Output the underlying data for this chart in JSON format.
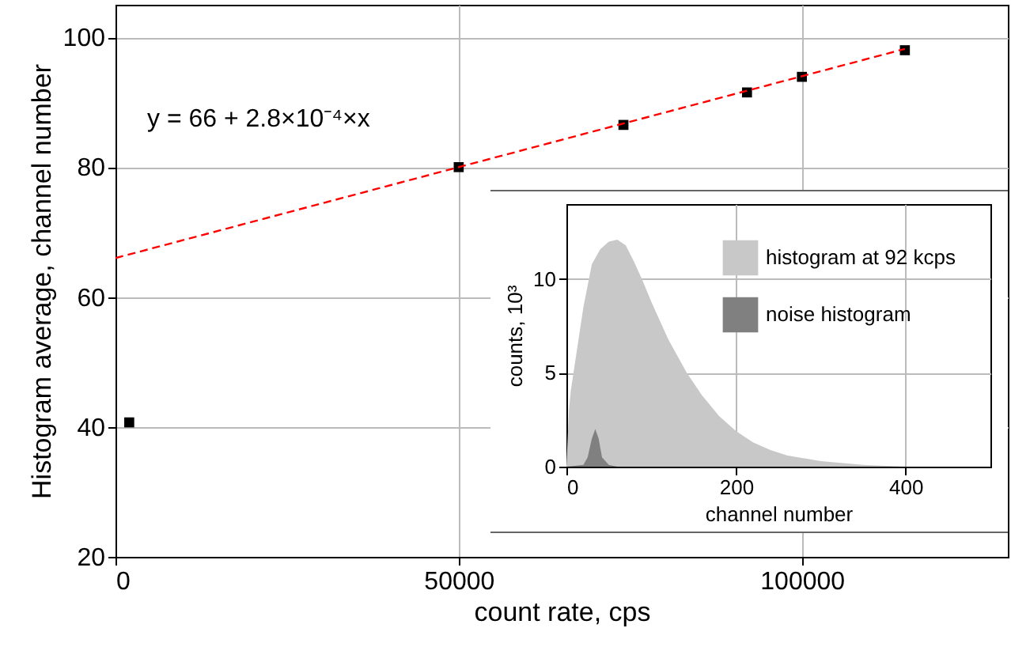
{
  "chart_data": [
    {
      "type": "scatter",
      "xlabel": "count rate, cps",
      "ylabel": "Histogram average, channel number",
      "xlim": [
        0,
        130000
      ],
      "xticks": [
        0,
        50000,
        100000
      ],
      "ylim": [
        20,
        105
      ],
      "yticks": [
        20,
        40,
        60,
        80,
        100
      ],
      "grid": true,
      "annotations": [
        "y = 66 + 2.8×10⁻⁴×x"
      ],
      "series": [
        {
          "color": "#000000",
          "marker": "square",
          "x": [
            2000,
            50000,
            74000,
            92000,
            100000,
            115000
          ],
          "values": [
            40.7,
            80,
            86.5,
            91.5,
            93.9,
            98.0
          ]
        },
        {
          "type": "line",
          "color": "#ff0000",
          "line_style": "dashed",
          "x": [
            0,
            115000
          ],
          "values": [
            66,
            98.2
          ]
        }
      ]
    },
    {
      "type": "area",
      "xlabel": "channel number",
      "ylabel": "counts, 10³",
      "xlim": [
        0,
        500
      ],
      "xticks": [
        0,
        200,
        400
      ],
      "ylim": [
        0,
        14
      ],
      "yticks": [
        0,
        5,
        10
      ],
      "grid": true,
      "legend": "top right",
      "series": [
        {
          "name": "histogram at 92 kcps",
          "color": "#c8c8c8",
          "x": [
            0,
            3,
            5,
            10,
            20,
            30,
            40,
            50,
            60,
            70,
            80,
            90,
            100,
            120,
            142,
            160,
            180,
            200,
            220,
            240,
            260,
            300,
            350,
            400,
            500
          ],
          "values": [
            0,
            3,
            4,
            5.5,
            8.5,
            10.8,
            11.6,
            12.0,
            12.1,
            11.8,
            10.9,
            9.9,
            8.8,
            6.8,
            5.0,
            3.8,
            2.7,
            1.9,
            1.3,
            0.9,
            0.6,
            0.3,
            0.1,
            0.0,
            0
          ]
        },
        {
          "name": "noise histogram",
          "color": "#808080",
          "x": [
            0,
            20,
            25,
            30,
            34,
            38,
            42,
            50,
            60
          ],
          "values": [
            0,
            0.1,
            0.5,
            1.5,
            2.0,
            1.5,
            0.5,
            0.1,
            0
          ]
        }
      ]
    }
  ]
}
